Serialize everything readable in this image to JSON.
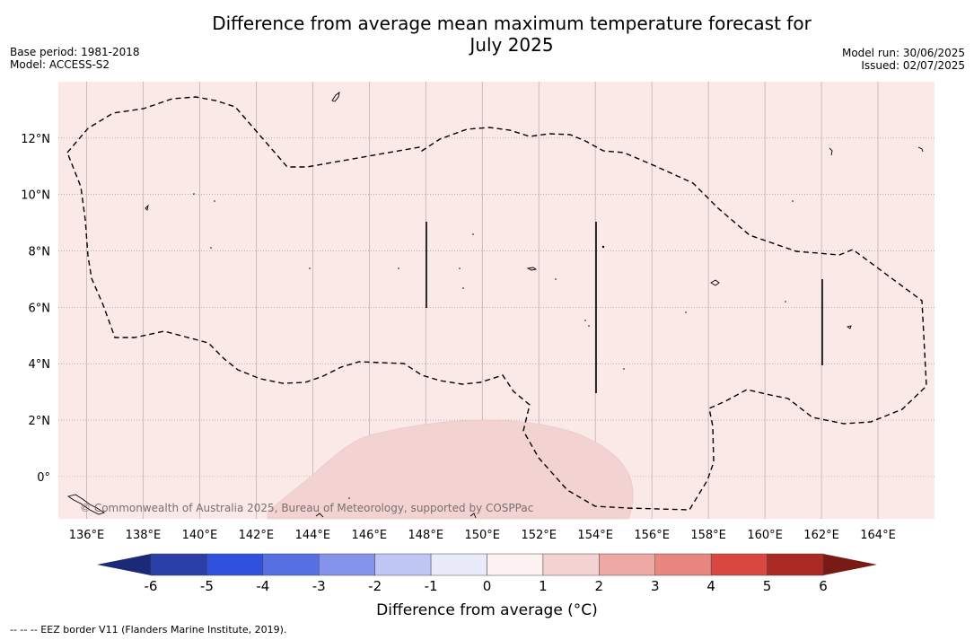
{
  "header": {
    "title_line1": "Difference from average mean maximum temperature forecast for",
    "title_line2": "July 2025",
    "base_period": "Base period: 1981-2018",
    "model": "Model: ACCESS-S2",
    "model_run": "Model run: 30/06/2025",
    "issued": "Issued: 02/07/2025"
  },
  "map": {
    "copyright": "© Commonwealth of Australia 2025, Bureau of Meteorology, supported by COSPPac",
    "lon_ticks": [
      "136°E",
      "138°E",
      "140°E",
      "142°E",
      "144°E",
      "146°E",
      "148°E",
      "150°E",
      "152°E",
      "154°E",
      "156°E",
      "158°E",
      "160°E",
      "162°E",
      "164°E"
    ],
    "lat_ticks": [
      "12°N",
      "10°N",
      "8°N",
      "6°N",
      "4°N",
      "2°N",
      "0°"
    ],
    "extent": {
      "lon": [
        135,
        166
      ],
      "lat": [
        -1.5,
        14
      ]
    },
    "colors": {
      "background_anomaly": "#fbe9e8",
      "warm_patch": "#f3d3d2",
      "eez_line": "#000000"
    }
  },
  "colorbar": {
    "label": "Difference from average (°C)",
    "ticks": [
      "-6",
      "-5",
      "-4",
      "-3",
      "-2",
      "-1",
      "0",
      "1",
      "2",
      "3",
      "4",
      "5",
      "6"
    ],
    "colors": [
      "#2b3fa8",
      "#2f52de",
      "#5670e3",
      "#8394ea",
      "#c0c6f4",
      "#e9ebfb",
      "#fdf2f1",
      "#f3d3d2",
      "#edaaa5",
      "#e78780",
      "#d94840",
      "#ac2a24"
    ],
    "extend_low": "#1a2a78",
    "extend_high": "#7a1a14"
  },
  "legend": {
    "eez": "--  --  -- EEZ border V11 (Flanders Marine Institute, 2019)."
  }
}
